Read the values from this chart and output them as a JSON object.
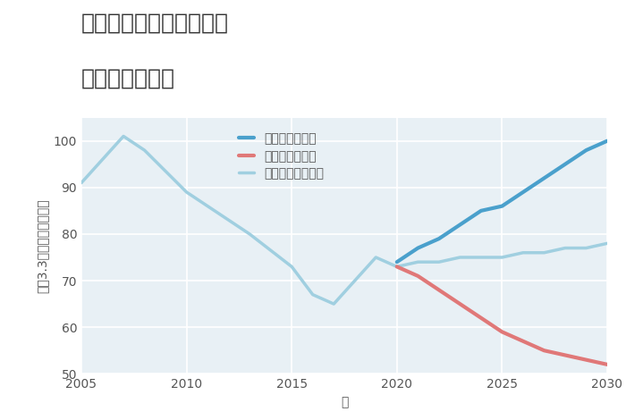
{
  "title_line1": "兵庫県尼崎市戸ノ内町の",
  "title_line2": "土地の価格推移",
  "xlabel": "年",
  "ylabel_parts": [
    "坪（3.3㎡）単価（万円）"
  ],
  "ylim": [
    50,
    105
  ],
  "xlim": [
    2005,
    2030
  ],
  "yticks": [
    50,
    60,
    70,
    80,
    90,
    100
  ],
  "xticks": [
    2005,
    2010,
    2015,
    2020,
    2025,
    2030
  ],
  "background_color": "#ffffff",
  "plot_bg_color": "#e8f0f5",
  "grid_color": "#ffffff",
  "normal_scenario": {
    "label": "ノーマルシナリオ",
    "color": "#a0cfe0",
    "linewidth": 2.5,
    "x": [
      2005,
      2007,
      2008,
      2010,
      2011,
      2013,
      2015,
      2016,
      2017,
      2019,
      2020,
      2021,
      2022,
      2023,
      2024,
      2025,
      2026,
      2027,
      2028,
      2029,
      2030
    ],
    "y": [
      91,
      101,
      98,
      89,
      86,
      80,
      73,
      67,
      65,
      75,
      73,
      74,
      74,
      75,
      75,
      75,
      76,
      76,
      77,
      77,
      78
    ]
  },
  "good_scenario": {
    "label": "グッドシナリオ",
    "color": "#4aa0cc",
    "linewidth": 3.0,
    "x": [
      2020,
      2021,
      2022,
      2023,
      2024,
      2025,
      2026,
      2027,
      2028,
      2029,
      2030
    ],
    "y": [
      74,
      77,
      79,
      82,
      85,
      86,
      89,
      92,
      95,
      98,
      100
    ]
  },
  "bad_scenario": {
    "label": "バッドシナリオ",
    "color": "#e07878",
    "linewidth": 3.0,
    "x": [
      2020,
      2021,
      2022,
      2023,
      2024,
      2025,
      2026,
      2027,
      2028,
      2029,
      2030
    ],
    "y": [
      73,
      71,
      68,
      65,
      62,
      59,
      57,
      55,
      54,
      53,
      52
    ]
  },
  "title_fontsize": 18,
  "legend_fontsize": 10,
  "tick_fontsize": 10,
  "axis_label_fontsize": 10
}
